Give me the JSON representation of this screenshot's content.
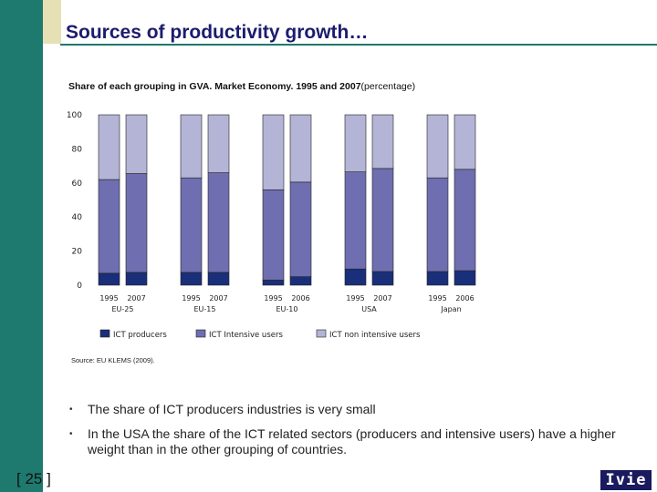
{
  "slide": {
    "title": "Sources of productivity growth…",
    "page_number": "[ 25 ]",
    "logo_text": "Ivie"
  },
  "colors": {
    "sidebar": "#1e7a6e",
    "title": "#1c1c6e",
    "ict_producers": "#1a2f7a",
    "ict_intensive": "#6e6eb0",
    "ict_non_intensive": "#b4b4d6"
  },
  "chart_title_main": "Share of each grouping in GVA. Market Economy. 1995 and 2007",
  "chart_title_suffix": "(percentage)",
  "source": "Source: EU KLEMS (2009).",
  "bullets": [
    "The share of ICT producers industries is very small",
    "In the USA the share of the ICT related sectors (producers and intensive users) have a higher weight than in the other grouping of countries."
  ],
  "chart_data": {
    "type": "bar",
    "stacked": true,
    "ylim": [
      0,
      100
    ],
    "yticks": [
      0,
      20,
      40,
      60,
      80,
      100
    ],
    "groups": [
      {
        "name": "EU-25",
        "years": [
          "1995",
          "2007"
        ]
      },
      {
        "name": "EU-15",
        "years": [
          "1995",
          "2007"
        ]
      },
      {
        "name": "EU-10",
        "years": [
          "1995",
          "2006"
        ]
      },
      {
        "name": "USA",
        "years": [
          "1995",
          "2007"
        ]
      },
      {
        "name": "Japan",
        "years": [
          "1995",
          "2006"
        ]
      }
    ],
    "series": [
      {
        "name": "ICT producers",
        "values": [
          [
            7,
            7.5
          ],
          [
            7.5,
            7.5
          ],
          [
            3,
            5
          ],
          [
            9.5,
            8
          ],
          [
            8,
            8.5
          ]
        ]
      },
      {
        "name": "ICT Intensive users",
        "values": [
          [
            55,
            58
          ],
          [
            55.5,
            58.5
          ],
          [
            53,
            55.5
          ],
          [
            57,
            60.5
          ],
          [
            55,
            59.5
          ]
        ]
      },
      {
        "name": "ICT non intensive users",
        "values": [
          [
            38,
            34.5
          ],
          [
            37,
            34
          ],
          [
            44,
            39.5
          ],
          [
            33.5,
            31.5
          ],
          [
            37,
            32
          ]
        ]
      }
    ],
    "legend_position": "bottom"
  }
}
